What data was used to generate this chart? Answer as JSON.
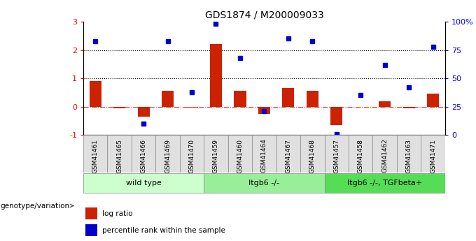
{
  "title": "GDS1874 / M200009033",
  "samples": [
    "GSM41461",
    "GSM41465",
    "GSM41466",
    "GSM41469",
    "GSM41470",
    "GSM41459",
    "GSM41460",
    "GSM41464",
    "GSM41467",
    "GSM41468",
    "GSM41457",
    "GSM41458",
    "GSM41462",
    "GSM41463",
    "GSM41471"
  ],
  "log_ratio": [
    0.9,
    -0.05,
    -0.35,
    0.55,
    -0.03,
    2.2,
    0.55,
    -0.25,
    0.65,
    0.55,
    -0.65,
    -0.02,
    0.2,
    -0.05,
    0.45
  ],
  "percentile_rank_pct": [
    83,
    null,
    10,
    83,
    38,
    98,
    68,
    21,
    85,
    83,
    1,
    35,
    62,
    42,
    78
  ],
  "groups": [
    {
      "label": "wild type",
      "start": 0,
      "end": 5,
      "color": "#ccffcc"
    },
    {
      "label": "Itgb6 -/-",
      "start": 5,
      "end": 10,
      "color": "#99ee99"
    },
    {
      "label": "Itgb6 -/-, TGFbeta+",
      "start": 10,
      "end": 15,
      "color": "#55dd55"
    }
  ],
  "bar_color": "#cc2200",
  "dot_color": "#0000cc",
  "ylim_left": [
    -1.0,
    3.0
  ],
  "yticks_left": [
    -1,
    0,
    1,
    2,
    3
  ],
  "ytick_labels_left": [
    "-1",
    "0",
    "1",
    "2",
    "3"
  ],
  "yticks_right_pct": [
    0,
    25,
    50,
    75,
    100
  ],
  "ytick_labels_right": [
    "0",
    "25",
    "50",
    "75",
    "100%"
  ],
  "hlines": [
    1.0,
    2.0
  ],
  "zero_line_color": "#cc3333",
  "background_color": "#ffffff",
  "legend_items": [
    "log ratio",
    "percentile rank within the sample"
  ]
}
